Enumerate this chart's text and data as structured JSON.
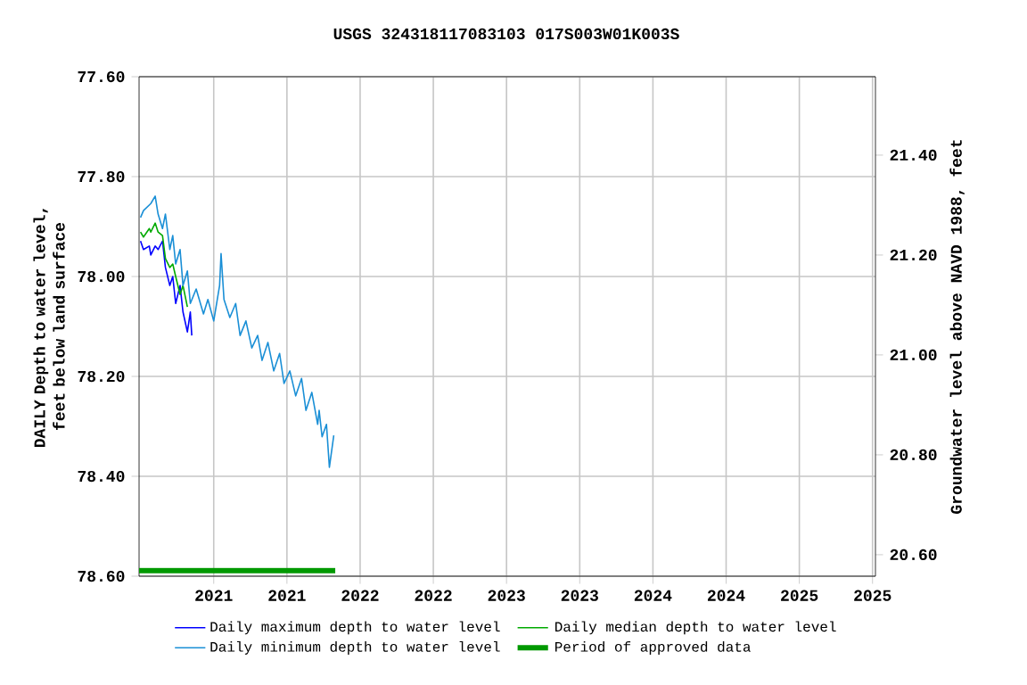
{
  "chart_data": {
    "type": "line",
    "title": "USGS 324318117083103 017S003W01K003S",
    "ylabel": "DAILY Depth to water level, feet below land surface",
    "y2label": "Groundwater level above NAVD 1988, feet",
    "xlim": [
      2020.49,
      2025.52
    ],
    "xticks": [
      2021,
      {
        "value": 2021.5,
        "label": "2021"
      },
      2022,
      {
        "value": 2022.5,
        "label": "2022"
      },
      2023,
      {
        "value": 2023.5,
        "label": "2023"
      },
      2024,
      {
        "value": 2024.5,
        "label": "2024"
      },
      2025,
      {
        "value": 2025.5,
        "label": "2025"
      }
    ],
    "ylim": [
      78.6,
      77.6
    ],
    "yticks": [
      {
        "value": 77.6,
        "label": "77.60"
      },
      {
        "value": 77.8,
        "label": "77.80"
      },
      {
        "value": 78.0,
        "label": "78.00"
      },
      {
        "value": 78.2,
        "label": "78.20"
      },
      {
        "value": 78.4,
        "label": "78.40"
      },
      {
        "value": 78.6,
        "label": "78.60"
      }
    ],
    "y2lim": [
      20.557,
      21.557
    ],
    "y2ticks": [
      {
        "value": 20.6,
        "label": "20.60"
      },
      {
        "value": 20.8,
        "label": "20.80"
      },
      {
        "value": 21.0,
        "label": "21.00"
      },
      {
        "value": 21.2,
        "label": "21.20"
      },
      {
        "value": 21.4,
        "label": "21.40"
      }
    ],
    "grid": true,
    "legend": "bottom",
    "series": [
      {
        "name": "Daily maximum depth to water level",
        "color": "#0000ff",
        "x": [
          2020.5,
          2020.52,
          2020.56,
          2020.57,
          2020.6,
          2020.62,
          2020.65,
          2020.67,
          2020.7,
          2020.72,
          2020.74,
          2020.77,
          2020.79,
          2020.82,
          2020.84,
          2020.85
        ],
        "values": [
          77.929,
          77.946,
          77.939,
          77.957,
          77.939,
          77.946,
          77.929,
          77.982,
          78.018,
          78.0,
          78.054,
          78.018,
          78.071,
          78.111,
          78.071,
          78.118
        ]
      },
      {
        "name": "Daily median depth to water level",
        "color": "#00aa00",
        "x": [
          2020.5,
          2020.52,
          2020.56,
          2020.57,
          2020.6,
          2020.62,
          2020.65,
          2020.67,
          2020.7,
          2020.72,
          2020.74,
          2020.77,
          2020.79,
          2020.82
        ],
        "values": [
          77.911,
          77.921,
          77.904,
          77.911,
          77.893,
          77.911,
          77.918,
          77.964,
          77.982,
          77.975,
          78.0,
          78.036,
          78.018,
          78.061
        ]
      },
      {
        "name": "Daily minimum depth to water level",
        "color": "#1a8fd6",
        "x": [
          2020.5,
          2020.52,
          2020.57,
          2020.6,
          2020.62,
          2020.65,
          2020.67,
          2020.7,
          2020.72,
          2020.74,
          2020.77,
          2020.79,
          2020.82,
          2020.84,
          2020.88,
          2020.93,
          2020.96,
          2021.0,
          2021.04,
          2021.05,
          2021.07,
          2021.11,
          2021.15,
          2021.18,
          2021.22,
          2021.26,
          2021.3,
          2021.33,
          2021.37,
          2021.41,
          2021.45,
          2021.48,
          2021.52,
          2021.56,
          2021.6,
          2021.63,
          2021.67,
          2021.71,
          2021.72,
          2021.74,
          2021.77,
          2021.79,
          2021.82
        ],
        "values": [
          77.882,
          77.868,
          77.854,
          77.839,
          77.875,
          77.904,
          77.875,
          77.946,
          77.918,
          77.975,
          77.946,
          78.018,
          77.989,
          78.054,
          78.025,
          78.075,
          78.046,
          78.089,
          78.018,
          77.954,
          78.046,
          78.082,
          78.054,
          78.118,
          78.089,
          78.143,
          78.118,
          78.168,
          78.132,
          78.189,
          78.154,
          78.214,
          78.189,
          78.239,
          78.204,
          78.268,
          78.232,
          78.296,
          78.268,
          78.321,
          78.296,
          78.382,
          78.318
        ]
      },
      {
        "name": "Period of approved data",
        "color": "#009900",
        "x": [
          2020.49,
          2021.83
        ],
        "values": [
          78.589,
          78.589
        ]
      }
    ]
  }
}
